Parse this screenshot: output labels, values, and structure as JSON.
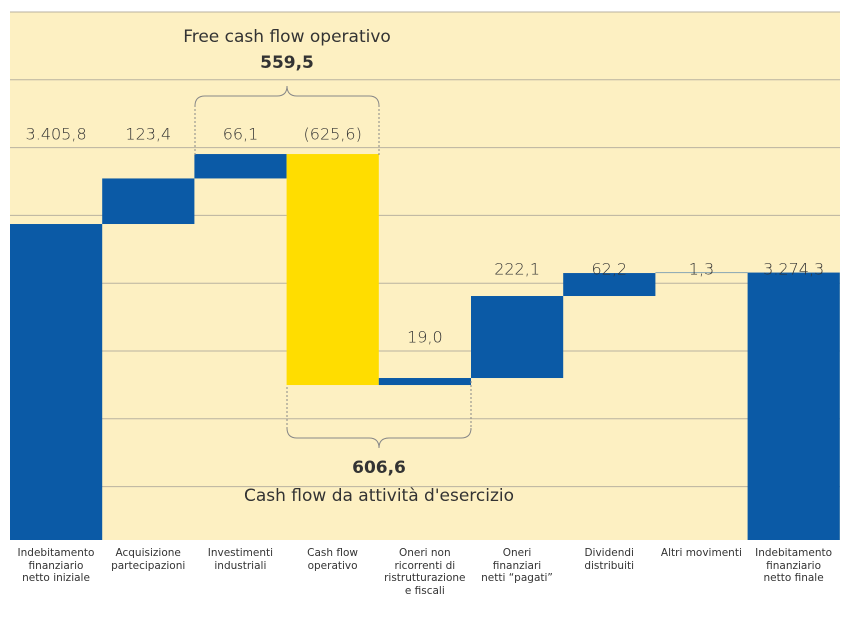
{
  "chart_data": {
    "type": "waterfall",
    "categories": [
      "Indebitamento\nfinanziario\nnetto iniziale",
      "Acquisizione\npartecipazioni",
      "Investimenti\nindustriali",
      "Cash flow\noperativo",
      "Oneri non\nricorrenti di\nristrutturazione\ne fiscali",
      "Oneri\nfinanziari\nnetti “pagati”",
      "Dividendi\ndistribuiti",
      "Altri movimenti",
      "Indebitamento\nfinanziario\nnetto finale"
    ],
    "values": [
      3405.8,
      123.4,
      66.1,
      -625.6,
      19.0,
      222.1,
      62.2,
      1.3,
      3274.3
    ],
    "value_labels": [
      "3.405,8",
      "123,4",
      "66,1",
      "(625,6)",
      "19,0",
      "222,1",
      "62,2",
      "1,3",
      "3.274,3"
    ],
    "measure": [
      "total",
      "relative",
      "relative",
      "relative",
      "relative",
      "relative",
      "relative",
      "relative",
      "total"
    ],
    "colors": [
      "#0b5aa6",
      "#0b5aa6",
      "#0b5aa6",
      "#ffdd00",
      "#0b5aa6",
      "#0b5aa6",
      "#0b5aa6",
      "#0b5aa6",
      "#0b5aa6"
    ],
    "ylim": [
      2550,
      3980
    ],
    "annotations": [
      {
        "label": "Free cash flow operativo",
        "value": 559.5,
        "value_label": "559,5"
      },
      {
        "label": "Cash flow da attività d'esercizio",
        "value": 606.6,
        "value_label": "606,6"
      }
    ]
  }
}
